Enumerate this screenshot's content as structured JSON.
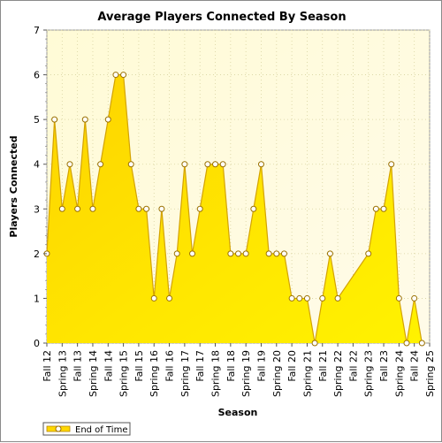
{
  "chart_data": {
    "type": "area",
    "title": "Average Players Connected By Season",
    "xlabel": "Season",
    "ylabel": "Players Connected",
    "ylim": [
      0,
      7
    ],
    "yticks": [
      0,
      1,
      2,
      3,
      4,
      5,
      6,
      7
    ],
    "grid": true,
    "legend_position": "bottom-left",
    "x_tick_labels": [
      "Fall 12",
      "Spring 13",
      "Fall 13",
      "Spring 14",
      "Fall 14",
      "Spring 15",
      "Fall 15",
      "Spring 16",
      "Fall 16",
      "Spring 17",
      "Fall 17",
      "Spring 18",
      "Fall 18",
      "Spring 19",
      "Fall 19",
      "Spring 20",
      "Fall 20",
      "Spring 21",
      "Fall 21",
      "Spring 22",
      "Fall 22",
      "Spring 23",
      "Fall 23",
      "Spring 24",
      "Fall 24",
      "Spring 25"
    ],
    "series": [
      {
        "name": "End of Time",
        "color": "#ffd800",
        "points": [
          [
            0.0,
            2
          ],
          [
            0.5,
            5
          ],
          [
            1.0,
            3
          ],
          [
            1.5,
            4
          ],
          [
            2.0,
            3
          ],
          [
            2.5,
            5
          ],
          [
            3.0,
            3
          ],
          [
            3.5,
            4
          ],
          [
            4.0,
            5
          ],
          [
            4.5,
            6
          ],
          [
            5.0,
            6
          ],
          [
            5.5,
            4
          ],
          [
            6.0,
            3
          ],
          [
            6.5,
            3
          ],
          [
            7.0,
            1
          ],
          [
            7.5,
            3
          ],
          [
            8.0,
            1
          ],
          [
            8.5,
            2
          ],
          [
            9.0,
            4
          ],
          [
            9.5,
            2
          ],
          [
            10.0,
            3
          ],
          [
            10.5,
            4
          ],
          [
            11.0,
            4
          ],
          [
            11.5,
            4
          ],
          [
            12.0,
            2
          ],
          [
            12.5,
            2
          ],
          [
            13.0,
            2
          ],
          [
            13.5,
            3
          ],
          [
            14.0,
            4
          ],
          [
            14.5,
            2
          ],
          [
            15.0,
            2
          ],
          [
            15.5,
            2
          ],
          [
            16.0,
            1
          ],
          [
            16.5,
            1
          ],
          [
            17.0,
            1
          ],
          [
            17.5,
            0
          ],
          [
            18.0,
            1
          ],
          [
            18.5,
            2
          ],
          [
            19.0,
            1
          ],
          [
            21.0,
            2
          ],
          [
            21.5,
            3
          ],
          [
            22.0,
            3
          ],
          [
            22.5,
            4
          ],
          [
            23.0,
            1
          ],
          [
            23.5,
            0
          ],
          [
            24.0,
            1
          ],
          [
            24.5,
            0
          ]
        ]
      }
    ]
  }
}
